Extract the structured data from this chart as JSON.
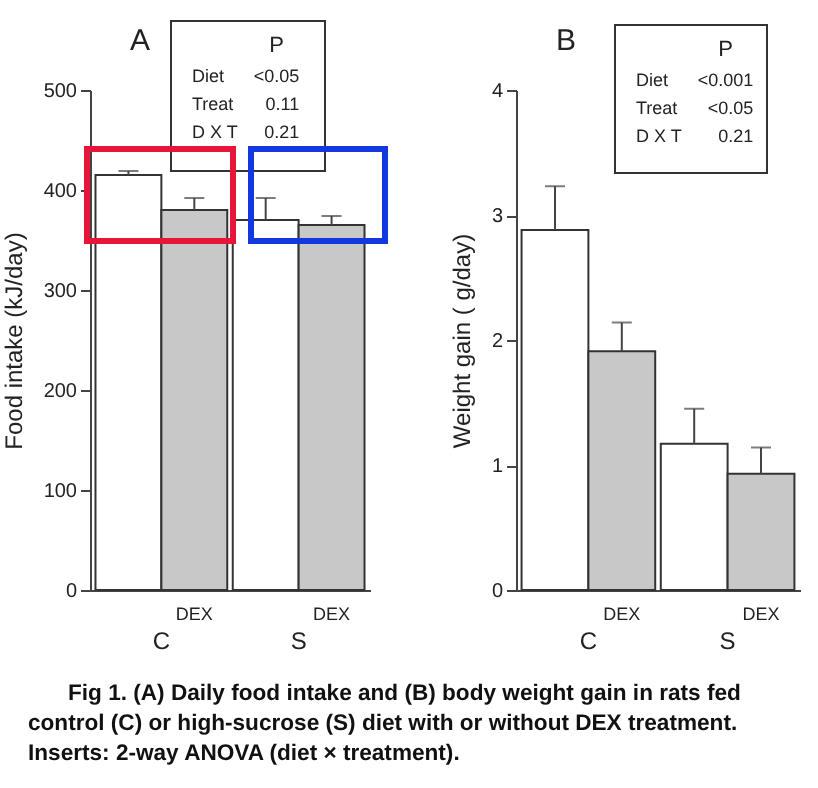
{
  "chart_data": [
    {
      "type": "bar",
      "title": "A",
      "ylabel": "Food intake  (kJ/day)",
      "categories": [
        "C",
        "S"
      ],
      "series": [
        {
          "color": "#ffffff",
          "values": [
            415,
            370
          ],
          "errors": [
            [
              415,
              419
            ],
            [
              370,
              392
            ]
          ]
        },
        {
          "name": "DEX",
          "color": "#c8c8c8",
          "values": [
            380,
            365
          ],
          "errors": [
            [
              380,
              392
            ],
            [
              365,
              374
            ]
          ]
        }
      ],
      "ylim": [
        0,
        500
      ],
      "yticks": [
        0,
        100,
        200,
        300,
        400,
        500
      ],
      "grid": false,
      "annotations": [
        "P",
        "Diet",
        "<0.05",
        "Treat",
        "0.11",
        "D X T",
        "0.21",
        "Fig 1.   (A) Daily food intake and (B) body weight gain in rats fed control (C) or high-sucrose (S) diet with or without DEX treatment. Inserts: 2-way ANOVA (diet × treatment)."
      ]
    },
    {
      "type": "bar",
      "title": "B",
      "ylabel": "Weight gain ( g/day)",
      "categories": [
        "C",
        "S"
      ],
      "series": [
        {
          "color": "#ffffff",
          "values": [
            2.88,
            1.17
          ],
          "errors": [
            [
              2.88,
              3.23
            ],
            [
              1.17,
              1.45
            ]
          ]
        },
        {
          "name": "DEX",
          "color": "#c8c8c8",
          "values": [
            1.91,
            0.93
          ],
          "errors": [
            [
              1.91,
              2.14
            ],
            [
              0.93,
              1.14
            ]
          ]
        }
      ],
      "ylim": [
        0,
        4
      ],
      "yticks": [
        0,
        1,
        2,
        3,
        4
      ],
      "grid": false,
      "annotations": [
        "P",
        "Diet",
        "<0.001",
        "Treat",
        "<0.05",
        "D X T",
        "0.21"
      ]
    }
  ]
}
